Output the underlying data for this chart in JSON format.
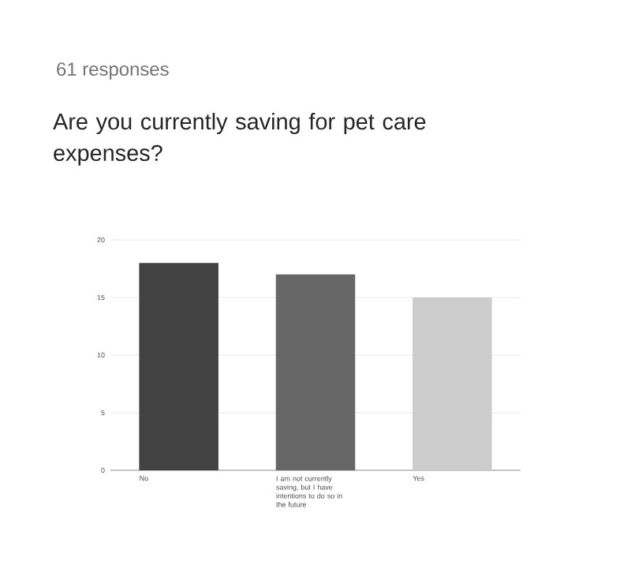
{
  "chart_data": {
    "type": "bar",
    "subtitle": "61 responses",
    "title": "Are you currently saving for pet care expenses?",
    "categories": [
      "No",
      "I am not currently saving, but I have intentions to do so in the future",
      "Yes"
    ],
    "values": [
      18,
      17,
      15
    ],
    "colors": [
      "#424242",
      "#666666",
      "#cccccc"
    ],
    "ylim": [
      0,
      20
    ],
    "yticks": [
      0,
      5,
      10,
      15,
      20
    ],
    "grid": "y"
  }
}
